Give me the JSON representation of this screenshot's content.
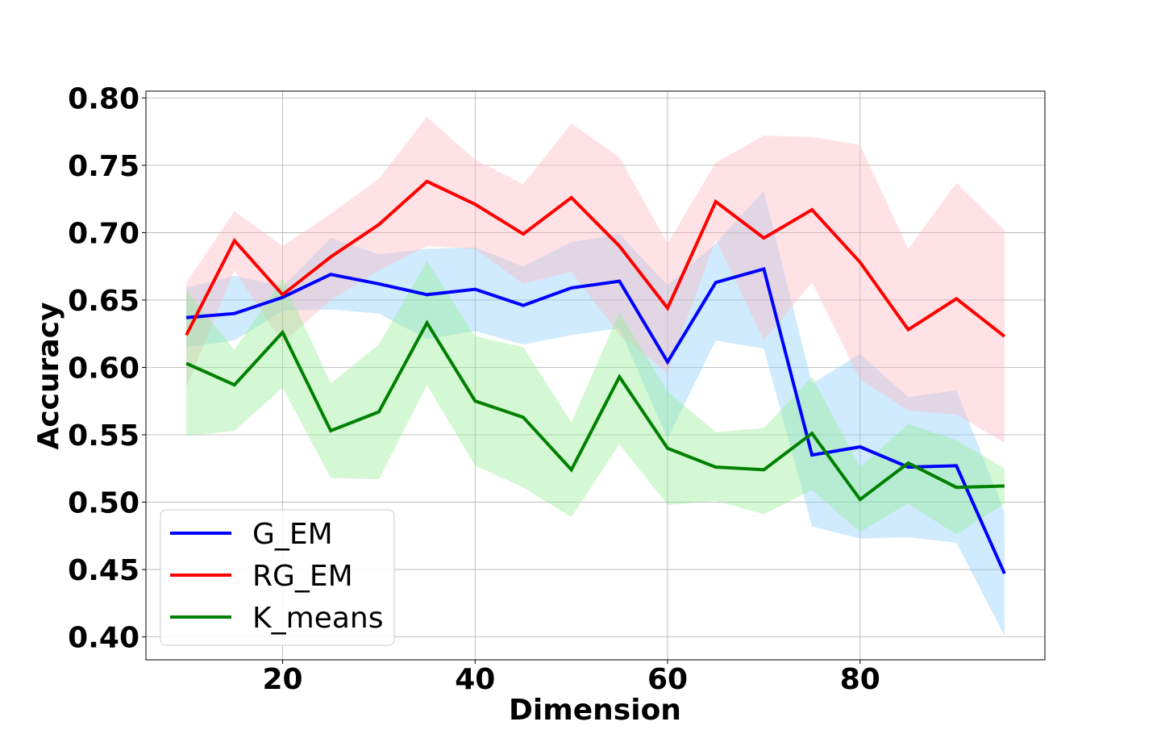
{
  "chart_data": {
    "type": "line",
    "title": "",
    "xlabel": "Dimension",
    "ylabel": "Accuracy",
    "xlim": [
      5.8,
      99.2
    ],
    "ylim": [
      0.383,
      0.805
    ],
    "grid": true,
    "legend_position": "lower-left",
    "x_ticks": [
      20,
      40,
      60,
      80
    ],
    "x_tick_labels": [
      "20",
      "40",
      "60",
      "80"
    ],
    "y_ticks": [
      0.4,
      0.45,
      0.5,
      0.55,
      0.6,
      0.65,
      0.7,
      0.75,
      0.8
    ],
    "y_tick_labels": [
      "0.40",
      "0.45",
      "0.50",
      "0.55",
      "0.60",
      "0.65",
      "0.70",
      "0.75",
      "0.80"
    ],
    "x": [
      10,
      15,
      20,
      25,
      30,
      35,
      40,
      45,
      50,
      55,
      60,
      65,
      70,
      75,
      80,
      85,
      90,
      95
    ],
    "series": [
      {
        "name": "G_EM",
        "color": "#0000ff",
        "band_color": "#87cefa",
        "values": [
          0.637,
          0.64,
          0.652,
          0.669,
          0.662,
          0.654,
          0.658,
          0.646,
          0.659,
          0.664,
          0.604,
          0.663,
          0.673,
          0.535,
          0.541,
          0.526,
          0.527,
          0.447
        ],
        "lower": [
          0.615,
          0.62,
          0.642,
          0.643,
          0.64,
          0.621,
          0.627,
          0.617,
          0.624,
          0.629,
          0.547,
          0.62,
          0.614,
          0.482,
          0.473,
          0.474,
          0.47,
          0.401
        ],
        "upper": [
          0.659,
          0.668,
          0.66,
          0.696,
          0.684,
          0.688,
          0.689,
          0.675,
          0.693,
          0.699,
          0.661,
          0.692,
          0.731,
          0.588,
          0.61,
          0.578,
          0.583,
          0.493
        ]
      },
      {
        "name": "RG_EM",
        "color": "#ff0000",
        "band_color": "#ffb6c1",
        "values": [
          0.624,
          0.694,
          0.654,
          0.682,
          0.706,
          0.738,
          0.721,
          0.699,
          0.726,
          0.69,
          0.644,
          0.723,
          0.696,
          0.717,
          0.678,
          0.628,
          0.651,
          0.623
        ],
        "lower": [
          0.585,
          0.672,
          0.618,
          0.65,
          0.672,
          0.69,
          0.688,
          0.662,
          0.671,
          0.624,
          0.596,
          0.695,
          0.62,
          0.663,
          0.591,
          0.568,
          0.565,
          0.544
        ],
        "upper": [
          0.663,
          0.716,
          0.69,
          0.714,
          0.74,
          0.786,
          0.754,
          0.736,
          0.781,
          0.756,
          0.692,
          0.752,
          0.772,
          0.771,
          0.765,
          0.688,
          0.737,
          0.702
        ]
      },
      {
        "name": "K_means",
        "color": "#008000",
        "band_color": "#90ee90",
        "values": [
          0.603,
          0.587,
          0.626,
          0.553,
          0.567,
          0.633,
          0.575,
          0.563,
          0.524,
          0.593,
          0.54,
          0.526,
          0.524,
          0.551,
          0.502,
          0.529,
          0.511,
          0.512
        ],
        "lower": [
          0.549,
          0.553,
          0.585,
          0.518,
          0.517,
          0.587,
          0.527,
          0.511,
          0.489,
          0.543,
          0.498,
          0.501,
          0.491,
          0.509,
          0.478,
          0.499,
          0.476,
          0.499
        ],
        "upper": [
          0.657,
          0.613,
          0.666,
          0.588,
          0.617,
          0.679,
          0.623,
          0.615,
          0.559,
          0.641,
          0.582,
          0.552,
          0.555,
          0.593,
          0.526,
          0.558,
          0.546,
          0.525
        ]
      }
    ]
  }
}
